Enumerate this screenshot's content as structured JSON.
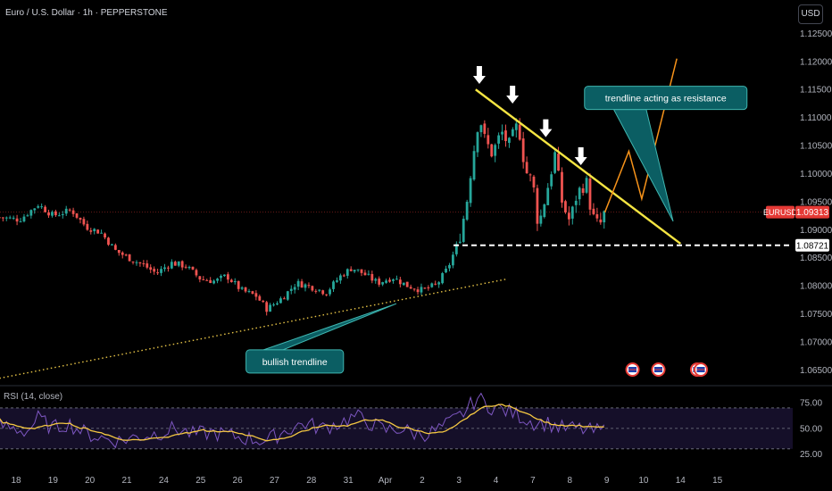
{
  "header": {
    "title": "Euro / U.S. Dollar · 1h · PEPPERSTONE",
    "currency_button": "USD"
  },
  "rsi_label": "RSI (14, close)",
  "colors": {
    "up": "#26a69a",
    "down": "#ef5350",
    "background": "#000000",
    "trendline_resistance": "#f5e542",
    "projection": "#f7931a",
    "callout_fill": "#0b5e63",
    "rsi_line": "#7e57c2",
    "rsi_ma": "#f5c842",
    "price_tag": "#e53935"
  },
  "chart_data": [
    {
      "type": "candlestick",
      "title": "Euro / U.S. Dollar · 1h · PEPPERSTONE",
      "xlabel": "",
      "ylabel": "",
      "ylim": [
        1.0625,
        1.1265
      ],
      "y_ticks": [
        "1.12500",
        "1.12000",
        "1.11500",
        "1.11000",
        "1.10500",
        "1.10000",
        "1.09500",
        "1.09000",
        "1.08500",
        "1.08000",
        "1.07500",
        "1.07000",
        "1.06500"
      ],
      "y_tick_values": [
        1.125,
        1.12,
        1.115,
        1.11,
        1.105,
        1.1,
        1.095,
        1.09,
        1.085,
        1.08,
        1.075,
        1.07,
        1.065
      ],
      "x_ticks": [
        "18",
        "19",
        "20",
        "21",
        "24",
        "25",
        "26",
        "27",
        "28",
        "31",
        "Apr",
        "2",
        "3",
        "4",
        "7",
        "8",
        "9",
        "10",
        "14",
        "15"
      ],
      "x_tick_days": [
        0,
        1,
        2,
        3,
        4,
        5,
        6,
        7,
        8,
        9,
        10,
        11,
        12,
        13,
        14,
        15,
        16,
        17,
        18,
        19
      ],
      "x_range_days": [
        -0.45,
        20.0
      ],
      "current_price": {
        "symbol": "EURUSD",
        "value": 1.09313,
        "label": "1.09313"
      },
      "support_level": {
        "value": 1.08721,
        "label": "1.08721",
        "from_day": 11.85
      },
      "close_path": [
        [
          -0.45,
          1.0922
        ],
        [
          0.1,
          1.0918
        ],
        [
          0.6,
          1.0945
        ],
        [
          1.0,
          1.0925
        ],
        [
          1.5,
          1.0935
        ],
        [
          1.9,
          1.0905
        ],
        [
          2.3,
          1.0895
        ],
        [
          2.7,
          1.0862
        ],
        [
          3.1,
          1.0848
        ],
        [
          3.5,
          1.0835
        ],
        [
          3.8,
          1.0822
        ],
        [
          4.2,
          1.0841
        ],
        [
          4.6,
          1.0835
        ],
        [
          5.0,
          1.0812
        ],
        [
          5.4,
          1.0808
        ],
        [
          5.7,
          1.0818
        ],
        [
          6.1,
          1.0792
        ],
        [
          6.5,
          1.0782
        ],
        [
          6.8,
          1.0758
        ],
        [
          7.2,
          1.0778
        ],
        [
          7.6,
          1.0805
        ],
        [
          8.0,
          1.0798
        ],
        [
          8.4,
          1.0788
        ],
        [
          8.8,
          1.0818
        ],
        [
          9.1,
          1.0832
        ],
        [
          9.4,
          1.0822
        ],
        [
          9.8,
          1.0805
        ],
        [
          10.2,
          1.0815
        ],
        [
          10.6,
          1.08
        ],
        [
          11.0,
          1.0792
        ],
        [
          11.4,
          1.0802
        ],
        [
          11.7,
          1.0832
        ],
        [
          12.0,
          1.0882
        ],
        [
          12.2,
          1.0945
        ],
        [
          12.35,
          1.102
        ],
        [
          12.55,
          1.1105
        ],
        [
          12.7,
          1.106
        ],
        [
          12.9,
          1.1035
        ],
        [
          13.15,
          1.1075
        ],
        [
          13.35,
          1.105
        ],
        [
          13.6,
          1.109
        ],
        [
          13.8,
          1.1005
        ],
        [
          14.0,
          1.0985
        ],
        [
          14.15,
          1.0905
        ],
        [
          14.4,
          1.0975
        ],
        [
          14.6,
          1.1035
        ],
        [
          14.8,
          1.0945
        ],
        [
          15.0,
          1.0915
        ],
        [
          15.2,
          1.0965
        ],
        [
          15.45,
          1.0985
        ],
        [
          15.6,
          1.0925
        ],
        [
          15.8,
          1.0905
        ],
        [
          15.95,
          1.0931
        ]
      ],
      "annotations": [
        {
          "kind": "trendline",
          "color": "yellow",
          "from": [
            12.45,
            1.115
          ],
          "to": [
            18.0,
            1.0875
          ]
        },
        {
          "kind": "projection",
          "color": "orange",
          "points": [
            [
              15.95,
              1.0931
            ],
            [
              16.6,
              1.104
            ],
            [
              16.95,
              1.0955
            ],
            [
              17.9,
              1.1205
            ]
          ]
        },
        {
          "kind": "trendline",
          "color": "yellow-dotted",
          "from": [
            -0.45,
            1.0635
          ],
          "to": [
            13.3,
            1.0812
          ]
        },
        {
          "kind": "arrow-down",
          "at": [
            12.55,
            1.116
          ]
        },
        {
          "kind": "arrow-down",
          "at": [
            13.45,
            1.1125
          ]
        },
        {
          "kind": "arrow-down",
          "at": [
            14.35,
            1.1065
          ]
        },
        {
          "kind": "arrow-down",
          "at": [
            15.3,
            1.1015
          ]
        },
        {
          "kind": "callout",
          "text": "trendline acting as resistance",
          "box": [
            17.6,
            1.1135
          ],
          "pointer": [
            17.8,
            1.0915
          ]
        },
        {
          "kind": "callout",
          "text": "bullish trendline",
          "box": [
            7.55,
            1.0665
          ],
          "pointer": [
            10.3,
            1.0768
          ]
        },
        {
          "kind": "event-flag",
          "at": 16.7
        },
        {
          "kind": "event-flag",
          "at": 17.4
        },
        {
          "kind": "event-flag",
          "at": 18.45
        },
        {
          "kind": "event-flag",
          "at": 18.55
        }
      ]
    },
    {
      "type": "line",
      "title": "RSI (14, close)",
      "ylim": [
        15,
        90
      ],
      "y_ticks": [
        "75.00",
        "50.00",
        "25.00"
      ],
      "y_tick_values": [
        75,
        50,
        25
      ],
      "band": [
        30,
        70
      ],
      "series": [
        {
          "values_path": [
            [
              -0.45,
              53
            ],
            [
              0.3,
              47
            ],
            [
              0.6,
              60
            ],
            [
              1.0,
              50
            ],
            [
              1.4,
              55
            ],
            [
              1.9,
              45
            ],
            [
              2.4,
              40
            ],
            [
              2.8,
              38
            ],
            [
              3.3,
              42
            ],
            [
              3.8,
              45
            ],
            [
              4.3,
              50
            ],
            [
              4.8,
              44
            ],
            [
              5.3,
              46
            ],
            [
              5.8,
              43
            ],
            [
              6.3,
              40
            ],
            [
              6.8,
              38
            ],
            [
              7.3,
              48
            ],
            [
              7.8,
              55
            ],
            [
              8.3,
              50
            ],
            [
              8.8,
              56
            ],
            [
              9.2,
              62
            ],
            [
              9.6,
              55
            ],
            [
              10.0,
              48
            ],
            [
              10.4,
              50
            ],
            [
              10.8,
              45
            ],
            [
              11.2,
              45
            ],
            [
              11.6,
              52
            ],
            [
              11.95,
              60
            ],
            [
              12.2,
              68
            ],
            [
              12.5,
              80
            ],
            [
              12.8,
              72
            ],
            [
              13.2,
              68
            ],
            [
              13.6,
              63
            ],
            [
              14.0,
              56
            ],
            [
              14.4,
              55
            ],
            [
              14.8,
              50
            ],
            [
              15.2,
              50
            ],
            [
              15.6,
              47
            ],
            [
              15.95,
              48
            ]
          ]
        }
      ]
    }
  ]
}
